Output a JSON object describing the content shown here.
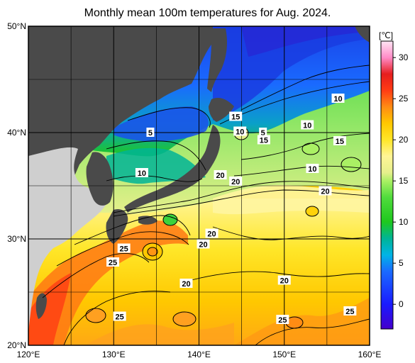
{
  "title": "Monthly mean 100m temperatures for Aug. 2024.",
  "colors": {
    "land": "#4a4a4a",
    "land_light": "#cfcfcf",
    "frame": "#000000"
  },
  "map": {
    "lon_range": [
      120,
      160
    ],
    "lat_range": [
      20,
      50
    ],
    "lon_ticks": [
      {
        "value": 120,
        "label": "120°E"
      },
      {
        "value": 130,
        "label": "130°E"
      },
      {
        "value": 140,
        "label": "140°E"
      },
      {
        "value": 150,
        "label": "150°E"
      },
      {
        "value": 160,
        "label": "160°E"
      }
    ],
    "lat_ticks": [
      {
        "value": 20,
        "label": "20°N"
      },
      {
        "value": 30,
        "label": "30°N"
      },
      {
        "value": 40,
        "label": "40°N"
      },
      {
        "value": 50,
        "label": "50°N"
      }
    ],
    "contour_labels": [
      {
        "text": "5",
        "lon": 134.3,
        "lat": 40.0
      },
      {
        "text": "10",
        "lon": 133.3,
        "lat": 36.2
      },
      {
        "text": "15",
        "lon": 144.3,
        "lat": 41.5
      },
      {
        "text": "10",
        "lon": 144.8,
        "lat": 40.1
      },
      {
        "text": "5",
        "lon": 147.5,
        "lat": 40.0
      },
      {
        "text": "15",
        "lon": 147.6,
        "lat": 39.3
      },
      {
        "text": "10",
        "lon": 152.7,
        "lat": 40.7
      },
      {
        "text": "10",
        "lon": 156.3,
        "lat": 43.2
      },
      {
        "text": "15",
        "lon": 156.5,
        "lat": 39.2
      },
      {
        "text": "10",
        "lon": 153.3,
        "lat": 36.6
      },
      {
        "text": "20",
        "lon": 142.5,
        "lat": 36.0
      },
      {
        "text": "20",
        "lon": 144.3,
        "lat": 35.4
      },
      {
        "text": "20",
        "lon": 154.8,
        "lat": 34.5
      },
      {
        "text": "20",
        "lon": 141.5,
        "lat": 30.5
      },
      {
        "text": "20",
        "lon": 140.5,
        "lat": 29.5
      },
      {
        "text": "25",
        "lon": 131.2,
        "lat": 29.1
      },
      {
        "text": "25",
        "lon": 129.9,
        "lat": 27.8
      },
      {
        "text": "20",
        "lon": 138.5,
        "lat": 25.8
      },
      {
        "text": "20",
        "lon": 150.0,
        "lat": 26.1
      },
      {
        "text": "25",
        "lon": 130.7,
        "lat": 22.7
      },
      {
        "text": "25",
        "lon": 149.8,
        "lat": 22.4
      },
      {
        "text": "25",
        "lon": 157.7,
        "lat": 23.2
      }
    ]
  },
  "colorbar": {
    "unit": "[℃]",
    "range": [
      -3,
      32
    ],
    "ticks": [
      {
        "value": 0,
        "label": "0"
      },
      {
        "value": 5,
        "label": "5"
      },
      {
        "value": 10,
        "label": "10"
      },
      {
        "value": 15,
        "label": "15"
      },
      {
        "value": 20,
        "label": "20"
      },
      {
        "value": 25,
        "label": "25"
      },
      {
        "value": 30,
        "label": "30"
      }
    ],
    "stops": [
      {
        "value": -3,
        "color": "#4400cc"
      },
      {
        "value": 0,
        "color": "#1a1aff"
      },
      {
        "value": 4,
        "color": "#1a6aff"
      },
      {
        "value": 6,
        "color": "#00b4e6"
      },
      {
        "value": 8,
        "color": "#00b496"
      },
      {
        "value": 10,
        "color": "#1ec81e"
      },
      {
        "value": 13,
        "color": "#50dc3c"
      },
      {
        "value": 15,
        "color": "#aaf064"
      },
      {
        "value": 16,
        "color": "#e6f08c"
      },
      {
        "value": 18,
        "color": "#fff596"
      },
      {
        "value": 20,
        "color": "#ffe628"
      },
      {
        "value": 22,
        "color": "#ffc800"
      },
      {
        "value": 24,
        "color": "#ff8c14"
      },
      {
        "value": 26,
        "color": "#ff3c14"
      },
      {
        "value": 28,
        "color": "#e61e1e"
      },
      {
        "value": 30,
        "color": "#ff8cc8"
      },
      {
        "value": 32,
        "color": "#ffe6f5"
      }
    ]
  }
}
